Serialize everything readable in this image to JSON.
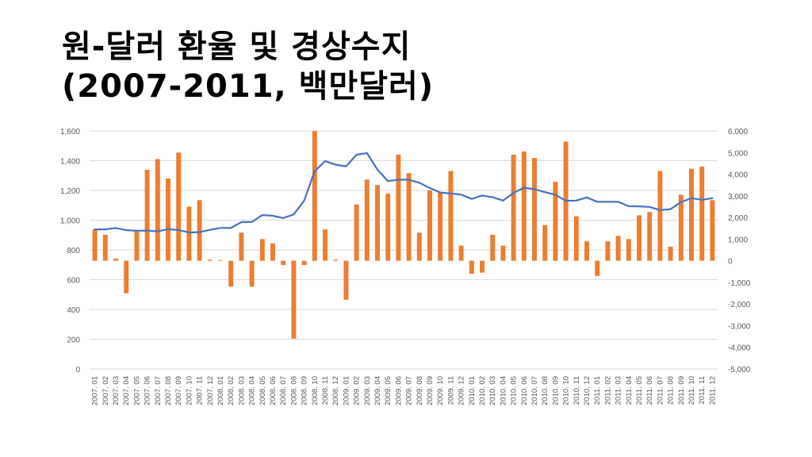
{
  "title": {
    "line1": "원-달러 환율 및 경상수지",
    "line2": "(2007-2011, 백만달러)"
  },
  "colors": {
    "line": "#4472c4",
    "bar": "#ed7d31",
    "grid": "#d9d9d9",
    "tick_text": "#595959"
  },
  "chart_data": {
    "type": "bar",
    "title": "원-달러 환율 및 경상수지 (2007-2011, 백만달러)",
    "legend": "none",
    "grid": true,
    "left_axis": {
      "min": 0,
      "max": 1600,
      "ticks": [
        "0",
        "200",
        "400",
        "600",
        "800",
        "1,000",
        "1,200",
        "1,400",
        "1,600"
      ]
    },
    "right_axis": {
      "min": -5000,
      "max": 6000,
      "ticks": [
        "-5,000",
        "-4,000",
        "-3,000",
        "-2,000",
        "-1,000",
        "0",
        "1,000",
        "2,000",
        "3,000",
        "4,000",
        "5,000",
        "6,000"
      ]
    },
    "categories": [
      "2007. 01",
      "2007. 02",
      "2007. 03",
      "2007. 04",
      "2007. 05",
      "2007. 06",
      "2007. 07",
      "2007. 08",
      "2007. 09",
      "2007. 10",
      "2007. 11",
      "2007. 12",
      "2008. 01",
      "2008. 02",
      "2008. 03",
      "2008. 04",
      "2008. 05",
      "2008. 06",
      "2008. 07",
      "2008. 08",
      "2008. 09",
      "2008. 10",
      "2008. 11",
      "2008. 12",
      "2009. 01",
      "2009. 02",
      "2009. 03",
      "2009. 04",
      "2009. 05",
      "2009. 06",
      "2009. 07",
      "2009. 08",
      "2009. 09",
      "2009. 10",
      "2009. 11",
      "2009. 12",
      "2010. 01",
      "2010. 02",
      "2010. 03",
      "2010. 04",
      "2010. 05",
      "2010. 06",
      "2010. 07",
      "2010. 08",
      "2010. 09",
      "2010. 10",
      "2010. 11",
      "2010. 12",
      "2011. 01",
      "2011. 02",
      "2011. 03",
      "2011. 04",
      "2011. 05",
      "2011. 06",
      "2011. 07",
      "2011. 08",
      "2011. 09",
      "2011. 10",
      "2011. 11",
      "2011. 12"
    ],
    "series": [
      {
        "type": "bar",
        "axis": "right",
        "values": [
          1450,
          1200,
          100,
          -1500,
          1400,
          4200,
          4700,
          3800,
          5000,
          2500,
          2800,
          50,
          30,
          -1200,
          1300,
          -1200,
          1000,
          800,
          -200,
          -3600,
          -200,
          6000,
          1450,
          50,
          -1800,
          2600,
          3750,
          3500,
          3100,
          4900,
          4050,
          1300,
          3250,
          3150,
          4150,
          700,
          -600,
          -550,
          1200,
          700,
          4900,
          5050,
          4750,
          1650,
          3650,
          5500,
          2050,
          900,
          -700,
          900,
          1150,
          1000,
          2100,
          2250,
          4150,
          650,
          3050,
          4250,
          4350,
          2800
        ]
      },
      {
        "type": "line",
        "axis": "left",
        "values": [
          938,
          938,
          947,
          933,
          929,
          930,
          925,
          939,
          934,
          917,
          920,
          935,
          948,
          948,
          987,
          988,
          1034,
          1030,
          1014,
          1039,
          1131,
          1329,
          1397,
          1373,
          1362,
          1440,
          1451,
          1340,
          1263,
          1272,
          1272,
          1252,
          1216,
          1186,
          1179,
          1172,
          1143,
          1166,
          1154,
          1132,
          1183,
          1218,
          1208,
          1188,
          1170,
          1130,
          1132,
          1153,
          1123,
          1123,
          1123,
          1094,
          1093,
          1089,
          1068,
          1074,
          1122,
          1148,
          1137,
          1148
        ]
      }
    ]
  }
}
